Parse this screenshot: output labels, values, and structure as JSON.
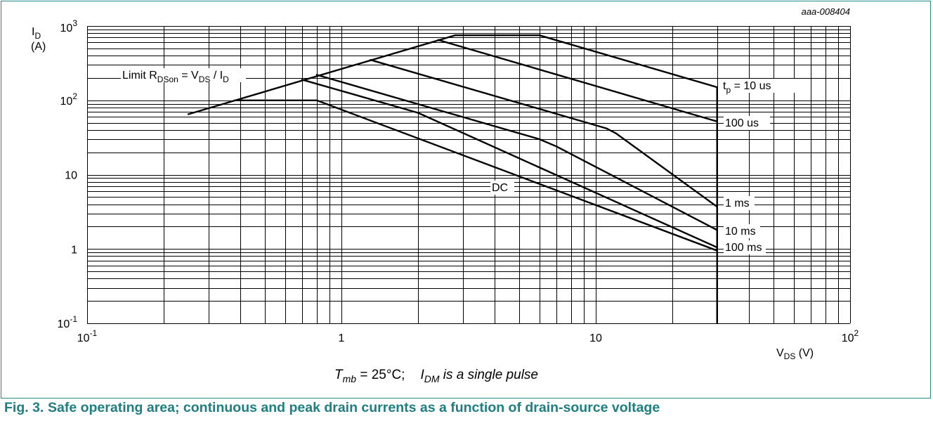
{
  "doc_id": "aaa-008404",
  "caption": {
    "number": "Fig. 3.",
    "text": "Safe operating area; continuous and peak drain currents as a function of drain-source voltage"
  },
  "condition": {
    "t": "T",
    "t_sub": "mb",
    "rest1": " = 25°C;",
    "i": "I",
    "i_sub": "DM",
    "rest2": " is a single pulse"
  },
  "chart_data": {
    "type": "line",
    "xscale": "log",
    "yscale": "log",
    "xlim": [
      0.1,
      100
    ],
    "ylim": [
      0.1,
      1000
    ],
    "grid": true,
    "xlabel": {
      "main": "V",
      "sub": "DS",
      "unit": " (V)"
    },
    "ylabel": {
      "main": "I",
      "sub": "D",
      "unit": "(A)"
    },
    "x_ticks": [
      {
        "value": 0.1,
        "base": "10",
        "exp": "-1"
      },
      {
        "value": 1,
        "base": "1",
        "exp": ""
      },
      {
        "value": 10,
        "base": "10",
        "exp": ""
      },
      {
        "value": 100,
        "base": "10",
        "exp": "2"
      }
    ],
    "y_ticks": [
      {
        "value": 0.1,
        "base": "10",
        "exp": "-1"
      },
      {
        "value": 1,
        "base": "1",
        "exp": ""
      },
      {
        "value": 10,
        "base": "10",
        "exp": ""
      },
      {
        "value": 100,
        "base": "10",
        "exp": "2"
      },
      {
        "value": 1000,
        "base": "10",
        "exp": "3"
      }
    ],
    "limit_line": {
      "label": {
        "pre": "Limit R",
        "sub1": "DSon",
        "mid": " = V",
        "sub2": "DS",
        "slash": " / I",
        "sub3": "D"
      },
      "points": [
        [
          0.25,
          65
        ],
        [
          2.8,
          750
        ]
      ]
    },
    "series": [
      {
        "name": "t_p = 10 us",
        "points": [
          [
            2.8,
            750
          ],
          [
            6,
            750
          ],
          [
            30,
            150
          ]
        ]
      },
      {
        "name": "100 us",
        "points": [
          [
            2.4,
            650
          ],
          [
            30,
            52
          ]
        ]
      },
      {
        "name": "1 ms",
        "points": [
          [
            1.3,
            350
          ],
          [
            11,
            42
          ],
          [
            12,
            36
          ],
          [
            30,
            3.7
          ]
        ]
      },
      {
        "name": "10 ms",
        "points": [
          [
            0.8,
            220
          ],
          [
            6,
            30
          ],
          [
            7,
            24
          ],
          [
            30,
            1.8
          ]
        ]
      },
      {
        "name": "100 ms",
        "points": [
          [
            0.7,
            190
          ],
          [
            2,
            68
          ],
          [
            30,
            1.05
          ]
        ]
      },
      {
        "name": "DC",
        "points": [
          [
            0.38,
            100
          ],
          [
            0.8,
            100
          ],
          [
            30,
            0.95
          ]
        ]
      }
    ],
    "vds_max_line": {
      "x": 30,
      "y_range": [
        0.1,
        150
      ]
    },
    "series_labels": {
      "tp": {
        "main": "t",
        "sub": "p",
        "rest": " = 10 us"
      },
      "us100": "100 us",
      "ms1": "1 ms",
      "ms10": "10 ms",
      "ms100": "100 ms",
      "dc": "DC"
    }
  }
}
